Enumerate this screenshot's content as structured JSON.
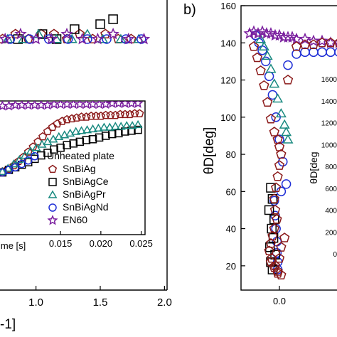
{
  "chart_data": [
    {
      "panel": "left-main",
      "type": "scatter",
      "x_ticks": [
        "1.0",
        "1.5",
        "2.0"
      ],
      "x_tick_values": [
        1.0,
        1.5,
        2.0
      ],
      "xlim": [
        0.72,
        2.02
      ],
      "xlabel_fragment": "-1]",
      "series": [
        {
          "color": "#8b1a1a",
          "marker": "pentagon",
          "x": [
            0.74,
            0.84,
            0.94,
            1.04,
            1.14,
            1.24,
            1.34,
            1.44,
            1.54,
            1.64,
            1.74
          ],
          "y": [
            1,
            2,
            1,
            2,
            2,
            1,
            2,
            1,
            2,
            1,
            1
          ]
        },
        {
          "color": "#000000",
          "marker": "square",
          "x": [
            0.86,
            1.05,
            1.16,
            1.3,
            1.5,
            1.6
          ],
          "y": [
            1,
            2,
            1,
            3,
            4,
            5
          ]
        },
        {
          "color": "#1a8a80",
          "marker": "triangle",
          "x": [
            0.78,
            0.9,
            1.02,
            1.16,
            1.28,
            1.4,
            1.52,
            1.66,
            1.8
          ],
          "y": [
            1,
            1,
            2,
            1,
            1,
            2,
            1,
            1,
            1
          ]
        },
        {
          "color": "#1f2fd6",
          "marker": "circle",
          "x": [
            0.8,
            0.95,
            1.1,
            1.25,
            1.4,
            1.55,
            1.7,
            1.82
          ],
          "y": [
            1,
            1,
            1,
            1,
            1,
            1,
            1,
            1
          ]
        },
        {
          "color": "#7a1f9e",
          "marker": "star",
          "x": [
            0.76,
            0.88,
            1.0,
            1.12,
            1.24,
            1.36,
            1.48,
            1.6,
            1.72,
            1.84
          ],
          "y": [
            1,
            2,
            1,
            1,
            2,
            1,
            1,
            2,
            1,
            1
          ]
        }
      ]
    },
    {
      "panel": "left-inset",
      "type": "scatter",
      "x_ticks": [
        "0.015",
        "0.020",
        "0.025"
      ],
      "x_tick_values": [
        0.015,
        0.02,
        0.025
      ],
      "xlim": [
        0.0075,
        0.0253
      ],
      "xlabel_fragment": "ime [s]",
      "legend_title": "Unheated plate",
      "legend": [
        "SnBiAg",
        "SnBiAgCe",
        "SnBiAgPr",
        "SnBiAgNd",
        "EN60"
      ],
      "series": [
        {
          "name": "SnBiAg",
          "color": "#8b1a1a",
          "marker": "pentagon",
          "x": [
            0.0078,
            0.0085,
            0.0092,
            0.0098,
            0.0104,
            0.011,
            0.0116,
            0.0122,
            0.0128,
            0.0134,
            0.014,
            0.0146,
            0.0152,
            0.0158,
            0.0164,
            0.017,
            0.0176,
            0.0182,
            0.0188,
            0.0194,
            0.02,
            0.0206,
            0.0212,
            0.0218,
            0.0224,
            0.023,
            0.0236,
            0.0242,
            0.0248
          ],
          "y": [
            3,
            6,
            10,
            15,
            20,
            26,
            32,
            38,
            44,
            50,
            55,
            59,
            62,
            64,
            65,
            66,
            67,
            67,
            68,
            68,
            68,
            69,
            69,
            69,
            70,
            70,
            70,
            71,
            71
          ]
        },
        {
          "name": "SnBiAgCe",
          "color": "#000000",
          "marker": "square",
          "x": [
            0.0078,
            0.0086,
            0.0094,
            0.0102,
            0.011,
            0.0118,
            0.0126,
            0.0134,
            0.0142,
            0.015,
            0.0158,
            0.0166,
            0.0174,
            0.0182,
            0.019,
            0.0198,
            0.0206,
            0.0214,
            0.0222,
            0.023,
            0.0238,
            0.0246
          ],
          "y": [
            2,
            5,
            8,
            11,
            14,
            18,
            22,
            25,
            29,
            31,
            34,
            36,
            38,
            40,
            41,
            43,
            45,
            47,
            48,
            50,
            51,
            52
          ]
        },
        {
          "name": "SnBiAgPr",
          "color": "#1a8a80",
          "marker": "triangle",
          "x": [
            0.0078,
            0.0085,
            0.0092,
            0.0099,
            0.0106,
            0.0113,
            0.012,
            0.0127,
            0.0134,
            0.0141,
            0.0148,
            0.0155,
            0.0162,
            0.0169,
            0.0176,
            0.0183,
            0.019,
            0.0197,
            0.0204,
            0.0211,
            0.0218,
            0.0225,
            0.0232,
            0.0239,
            0.0246
          ],
          "y": [
            3,
            7,
            12,
            17,
            22,
            27,
            31,
            35,
            38,
            41,
            44,
            46,
            48,
            50,
            51,
            52,
            53,
            54,
            55,
            55,
            56,
            56,
            57,
            57,
            58
          ]
        },
        {
          "name": "SnBiAgNd",
          "color": "#1f2fd6",
          "marker": "circle",
          "x": [
            0.0078,
            0.0086,
            0.0094,
            0.0102,
            0.011,
            0.0118
          ],
          "y": [
            2,
            5,
            8,
            12,
            16,
            21
          ]
        },
        {
          "name": "EN60",
          "color": "#7a1f9e",
          "marker": "star",
          "x": [
            0.0078,
            0.0086,
            0.0094,
            0.0102,
            0.011,
            0.0118,
            0.0126,
            0.0134,
            0.0142,
            0.015,
            0.0158,
            0.0166,
            0.0174,
            0.0182,
            0.019,
            0.0198,
            0.0206,
            0.0214,
            0.0222,
            0.023,
            0.0238,
            0.0246
          ],
          "y": [
            80,
            80,
            81,
            81,
            81,
            81,
            81,
            81,
            82,
            82,
            82,
            82,
            82,
            82,
            82,
            82,
            82,
            83,
            83,
            83,
            83,
            83
          ]
        }
      ]
    },
    {
      "panel": "b",
      "panel_label": "b)",
      "type": "scatter",
      "ylabel": "θD[deg]",
      "ylim": [
        10,
        160
      ],
      "y_ticks": [
        20,
        40,
        60,
        80,
        100,
        120,
        140,
        160
      ],
      "x_ticks": [
        "0.0"
      ],
      "x_tick_values": [
        0.0
      ],
      "xlim": [
        -0.45,
        0.8
      ],
      "series": [
        {
          "color": "#1f2fd6",
          "marker": "circle",
          "x": [
            -0.28,
            -0.24,
            -0.2,
            -0.16,
            -0.12,
            -0.08,
            -0.04,
            0.0,
            0.04,
            0.08,
            -0.06,
            -0.05,
            -0.04,
            -0.03,
            -0.03,
            -0.02,
            -0.02,
            0.02,
            0.1,
            0.2,
            0.3,
            0.4,
            0.5,
            0.6,
            0.7,
            0.78
          ],
          "y": [
            144,
            140,
            136,
            130,
            122,
            112,
            100,
            88,
            76,
            64,
            55,
            47,
            40,
            33,
            27,
            22,
            18,
            60,
            128,
            134,
            135,
            135,
            135,
            135,
            135,
            135
          ]
        },
        {
          "color": "#1a8a80",
          "marker": "triangle",
          "x": [
            -0.22,
            -0.18,
            -0.14,
            -0.1,
            -0.06,
            -0.02,
            0.02,
            0.06,
            0.08,
            0.1
          ],
          "y": [
            142,
            138,
            133,
            126,
            118,
            110,
            102,
            96,
            92,
            88
          ]
        },
        {
          "color": "#000000",
          "marker": "square",
          "x": [
            -0.1,
            -0.08,
            -0.12,
            -0.06,
            -0.09,
            -0.07,
            -0.11,
            -0.05,
            -0.1,
            -0.08
          ],
          "y": [
            62,
            56,
            50,
            45,
            40,
            35,
            30,
            26,
            22,
            18
          ]
        },
        {
          "color": "#7a1f9e",
          "marker": "star",
          "x": [
            -0.35,
            -0.3,
            -0.25,
            -0.2,
            -0.15,
            -0.1,
            -0.05,
            0.0,
            0.05,
            0.1,
            0.15,
            0.2,
            0.3,
            0.4,
            0.5,
            0.6,
            0.7,
            0.78
          ],
          "y": [
            145,
            146,
            145,
            146,
            145,
            145,
            144,
            144,
            143,
            143,
            143,
            142,
            142,
            141,
            141,
            140,
            140,
            140
          ]
        },
        {
          "color": "#8b1a1a",
          "marker": "pentagon",
          "x": [
            -0.3,
            -0.26,
            -0.22,
            -0.18,
            -0.14,
            -0.1,
            -0.06,
            -0.02,
            0.0,
            0.02,
            0.0,
            -0.02,
            -0.04,
            -0.06,
            -0.05,
            -0.03,
            -0.06,
            -0.08,
            -0.1,
            -0.12,
            -0.09,
            -0.05,
            -0.02,
            0.02,
            -0.1,
            -0.06,
            -0.02,
            0.0,
            0.02,
            0.06,
            0.1,
            0.2,
            0.3,
            0.4,
            0.5,
            0.6,
            0.7,
            0.78
          ],
          "y": [
            138,
            132,
            125,
            117,
            108,
            99,
            92,
            88,
            84,
            80,
            74,
            68,
            62,
            56,
            50,
            45,
            40,
            36,
            32,
            28,
            24,
            20,
            17,
            15,
            22,
            19,
            16,
            24,
            30,
            35,
            120,
            138,
            139,
            139,
            140,
            140,
            140,
            140
          ]
        }
      ]
    },
    {
      "panel": "b-inset",
      "type": "axis",
      "ylabel_fragment": "θD[deg",
      "y_ticks": [
        "1600",
        "1400",
        "1200",
        "1000",
        "800",
        "600",
        "400",
        "200",
        "0"
      ],
      "y_tick_values": [
        1600,
        1400,
        1200,
        1000,
        800,
        600,
        400,
        200,
        0
      ]
    }
  ]
}
